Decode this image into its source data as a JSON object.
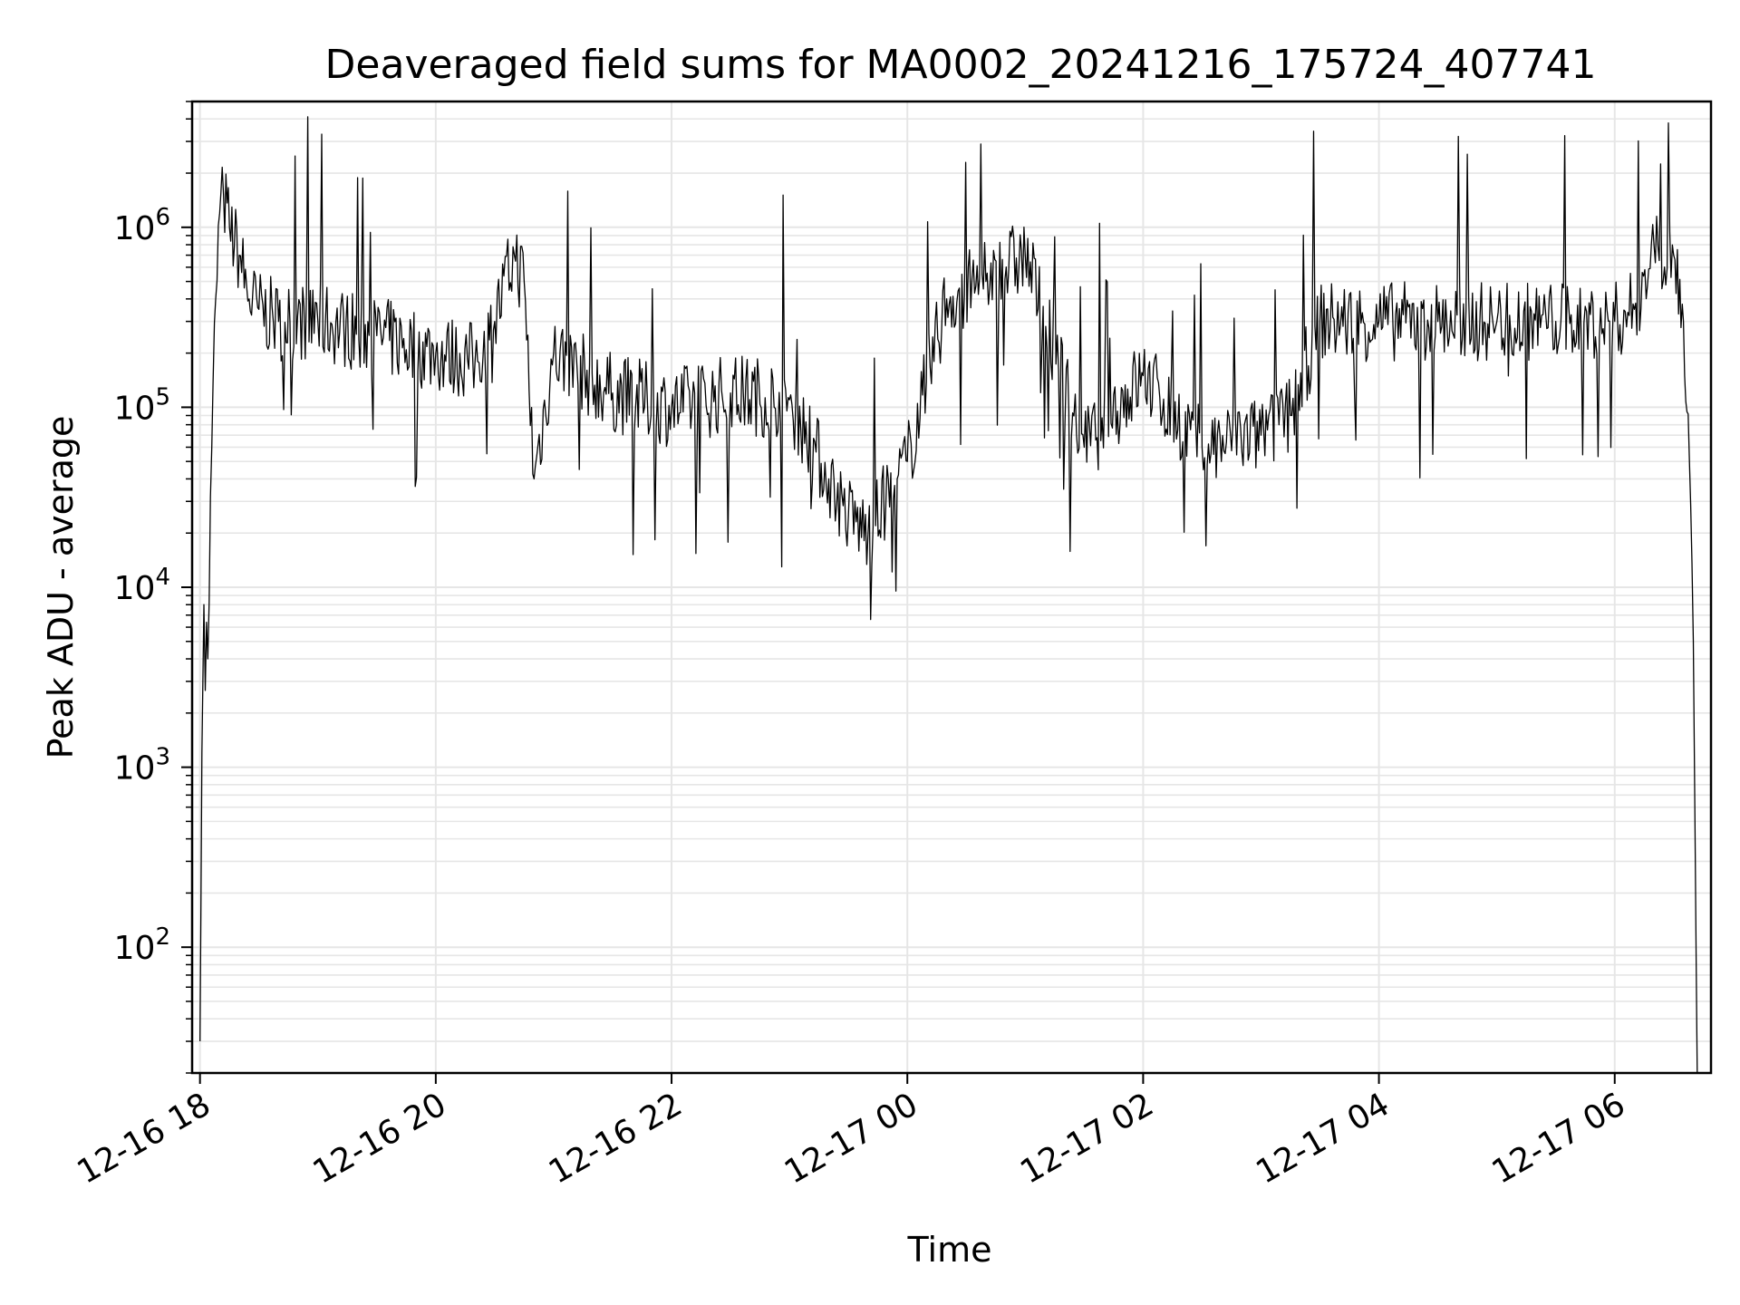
{
  "chart_data": {
    "type": "line",
    "title": "Deaveraged field sums for MA0002_20241216_175724_407741",
    "xlabel": "Time",
    "ylabel": "Peak ADU - average",
    "yscale": "log",
    "ylim": [
      20,
      5000000
    ],
    "xlim": [
      "2024-12-16T17:56",
      "2024-12-17T06:49"
    ],
    "grid": "major and minor, light gray",
    "line_color": "#000000",
    "x_ticks": [
      {
        "value": "2024-12-16T18:00",
        "label": "12-16 18"
      },
      {
        "value": "2024-12-16T20:00",
        "label": "12-16 20"
      },
      {
        "value": "2024-12-16T22:00",
        "label": "12-16 22"
      },
      {
        "value": "2024-12-17T00:00",
        "label": "12-17 00"
      },
      {
        "value": "2024-12-17T02:00",
        "label": "12-17 02"
      },
      {
        "value": "2024-12-17T04:00",
        "label": "12-17 04"
      },
      {
        "value": "2024-12-17T06:00",
        "label": "12-17 06"
      }
    ],
    "y_ticks": [
      {
        "value": 100,
        "base": "10",
        "exp": "2"
      },
      {
        "value": 1000,
        "base": "10",
        "exp": "3"
      },
      {
        "value": 10000,
        "base": "10",
        "exp": "4"
      },
      {
        "value": 100000,
        "base": "10",
        "exp": "5"
      },
      {
        "value": 1000000,
        "base": "10",
        "exp": "6"
      }
    ],
    "series": [
      {
        "x": [
          "2024-12-16T18:00",
          "2024-12-16T18:01",
          "2024-12-16T18:02",
          "2024-12-16T18:04",
          "2024-12-16T18:06",
          "2024-12-16T18:08",
          "2024-12-16T18:10",
          "2024-12-16T18:12",
          "2024-12-16T18:15",
          "2024-12-16T18:20",
          "2024-12-16T18:25",
          "2024-12-16T18:30",
          "2024-12-16T18:40",
          "2024-12-16T19:00",
          "2024-12-16T19:30",
          "2024-12-16T20:00",
          "2024-12-16T20:20",
          "2024-12-16T20:30",
          "2024-12-16T20:40",
          "2024-12-16T20:45",
          "2024-12-16T20:50",
          "2024-12-16T21:00",
          "2024-12-16T21:30",
          "2024-12-16T22:00",
          "2024-12-16T22:30",
          "2024-12-16T23:00",
          "2024-12-16T23:20",
          "2024-12-16T23:30",
          "2024-12-16T23:40",
          "2024-12-17T00:00",
          "2024-12-17T00:20",
          "2024-12-17T00:40",
          "2024-12-17T01:00",
          "2024-12-17T01:30",
          "2024-12-17T02:00",
          "2024-12-17T02:30",
          "2024-12-17T03:00",
          "2024-12-17T03:15",
          "2024-12-17T03:30",
          "2024-12-17T04:00",
          "2024-12-17T04:30",
          "2024-12-17T05:00",
          "2024-12-17T05:30",
          "2024-12-17T06:00",
          "2024-12-17T06:10",
          "2024-12-17T06:20",
          "2024-12-17T06:30",
          "2024-12-17T06:35",
          "2024-12-17T06:38",
          "2024-12-17T06:40",
          "2024-12-17T06:41",
          "2024-12-17T06:42"
        ],
        "y": [
          30,
          1200,
          8000,
          4000,
          60000,
          400000,
          1200000,
          1500000,
          1000000,
          700000,
          400000,
          350000,
          300000,
          300000,
          250000,
          200000,
          180000,
          300000,
          700000,
          500000,
          40000,
          200000,
          120000,
          100000,
          120000,
          110000,
          40000,
          25000,
          20000,
          50000,
          400000,
          500000,
          700000,
          60000,
          150000,
          60000,
          70000,
          90000,
          300000,
          300000,
          300000,
          300000,
          300000,
          300000,
          350000,
          800000,
          700000,
          300000,
          50000,
          5000,
          300,
          20
        ]
      }
    ]
  }
}
